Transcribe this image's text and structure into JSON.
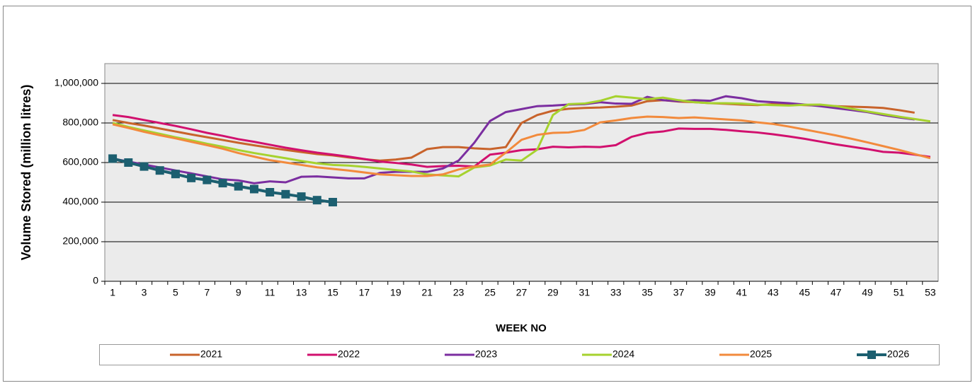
{
  "chart_data": {
    "type": "line",
    "y_label": "Volume Stored (million litres)",
    "x_label": "WEEK NO",
    "categories": [
      1,
      null,
      3,
      null,
      5,
      null,
      7,
      null,
      9,
      null,
      11,
      null,
      13,
      null,
      15,
      null,
      17,
      null,
      19,
      null,
      21,
      null,
      23,
      null,
      25,
      null,
      27,
      null,
      29,
      null,
      31,
      null,
      33,
      null,
      35,
      null,
      37,
      null,
      39,
      null,
      41,
      null,
      43,
      null,
      45,
      null,
      47,
      null,
      49,
      null,
      51,
      null,
      53
    ],
    "ylim": [
      0,
      1100000
    ],
    "yticks": [
      0,
      {
        "value": 200000,
        "label": "200,000"
      },
      {
        "value": 400000,
        "label": "400,000"
      },
      {
        "value": 600000,
        "label": "600,000"
      },
      {
        "value": 800000,
        "label": "800,000"
      },
      {
        "value": 1000000,
        "label": "1,000,000"
      }
    ],
    "grid": true,
    "legend": "bottom",
    "plot_background": "#ebebeb",
    "series": [
      {
        "name": "2021",
        "color": "#c8632b",
        "values": [
          815000,
          800000,
          787000,
          772000,
          757000,
          742000,
          728000,
          714000,
          700000,
          687000,
          675000,
          664000,
          653000,
          643000,
          636000,
          626000,
          617000,
          610000,
          615000,
          625000,
          668000,
          678000,
          678000,
          672000,
          668000,
          678000,
          800000,
          840000,
          862000,
          872000,
          876000,
          878000,
          882000,
          888000,
          910000,
          915000,
          908000,
          905000,
          900000,
          897000,
          893000,
          890000,
          895000,
          893000,
          890000,
          888000,
          885000,
          882000,
          880000,
          876000,
          865000,
          852000,
          null
        ]
      },
      {
        "name": "2022",
        "color": "#d1106e",
        "values": [
          840000,
          830000,
          815000,
          800000,
          785000,
          768000,
          750000,
          735000,
          718000,
          705000,
          690000,
          675000,
          662000,
          650000,
          640000,
          630000,
          618000,
          605000,
          598000,
          590000,
          578000,
          582000,
          584000,
          580000,
          640000,
          650000,
          663000,
          667000,
          680000,
          677000,
          680000,
          678000,
          688000,
          730000,
          750000,
          757000,
          772000,
          770000,
          770000,
          765000,
          758000,
          752000,
          743000,
          732000,
          720000,
          706000,
          692000,
          680000,
          668000,
          654000,
          650000,
          640000,
          628000
        ]
      },
      {
        "name": "2023",
        "color": "#7b2ea0",
        "values": [
          620000,
          605000,
          590000,
          575000,
          560000,
          545000,
          530000,
          515000,
          510000,
          495000,
          505000,
          500000,
          528000,
          530000,
          525000,
          520000,
          520000,
          548000,
          553000,
          553000,
          553000,
          570000,
          610000,
          700000,
          810000,
          855000,
          870000,
          885000,
          888000,
          893000,
          895000,
          905000,
          898000,
          897000,
          932000,
          915000,
          910000,
          915000,
          912000,
          935000,
          925000,
          910000,
          905000,
          900000,
          893000,
          885000,
          875000,
          865000,
          855000,
          840000,
          828000,
          818000,
          null
        ]
      },
      {
        "name": "2024",
        "color": "#a6d22e",
        "values": [
          800000,
          780000,
          762000,
          745000,
          728000,
          712000,
          695000,
          680000,
          663000,
          648000,
          635000,
          622000,
          608000,
          596000,
          588000,
          585000,
          578000,
          570000,
          562000,
          555000,
          540000,
          535000,
          530000,
          575000,
          585000,
          615000,
          610000,
          665000,
          840000,
          895000,
          898000,
          912000,
          935000,
          928000,
          920000,
          928000,
          915000,
          905000,
          900000,
          900000,
          898000,
          893000,
          890000,
          888000,
          892000,
          893000,
          885000,
          872000,
          858000,
          845000,
          832000,
          820000,
          808000
        ]
      },
      {
        "name": "2025",
        "color": "#f28a3c",
        "values": [
          793000,
          775000,
          755000,
          738000,
          722000,
          705000,
          688000,
          670000,
          648000,
          630000,
          612000,
          600000,
          588000,
          576000,
          568000,
          560000,
          550000,
          540000,
          536000,
          532000,
          532000,
          540000,
          565000,
          580000,
          590000,
          650000,
          715000,
          740000,
          750000,
          752000,
          765000,
          803000,
          813000,
          825000,
          832000,
          830000,
          825000,
          828000,
          823000,
          818000,
          813000,
          803000,
          795000,
          782000,
          767000,
          752000,
          737000,
          720000,
          702000,
          683000,
          664000,
          643000,
          622000
        ]
      },
      {
        "name": "2026",
        "color": "#1c5f70",
        "marker": "square",
        "values": [
          620000,
          600000,
          580000,
          560000,
          542000,
          522000,
          512000,
          496000,
          480000,
          466000,
          450000,
          440000,
          428000,
          410000,
          400000,
          null,
          null,
          null,
          null,
          null,
          null,
          null,
          null,
          null,
          null,
          null,
          null,
          null,
          null,
          null,
          null,
          null,
          null,
          null,
          null,
          null,
          null,
          null,
          null,
          null,
          null,
          null,
          null,
          null,
          null,
          null,
          null,
          null,
          null,
          null,
          null,
          null,
          null
        ]
      }
    ]
  }
}
